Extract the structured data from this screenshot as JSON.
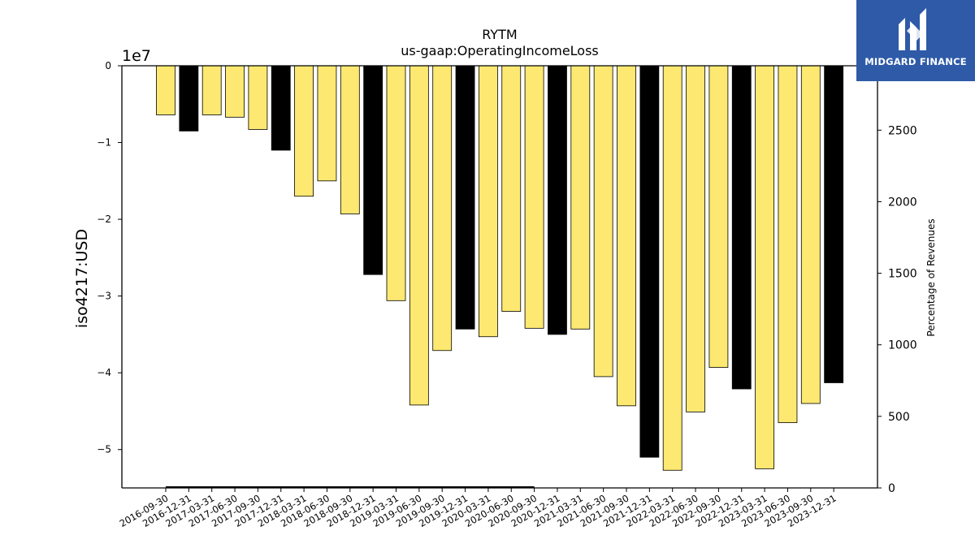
{
  "chart_data": {
    "type": "bar",
    "title": "RYTM",
    "subtitle": "us-gaap:OperatingIncomeLoss",
    "ylabel": "iso4217:USD",
    "y_offset_label": "1e7",
    "y2label": "Percentage of Revenues",
    "ylim": [
      -55000000,
      0
    ],
    "y2lim": [
      0,
      2950
    ],
    "y_ticks": [
      0,
      -1,
      -2,
      -3,
      -4,
      -5
    ],
    "y_tick_labels": [
      "0",
      "−1",
      "−2",
      "−3",
      "−4",
      "−5"
    ],
    "y2_ticks": [
      0,
      500,
      1000,
      1500,
      2000,
      2500
    ],
    "y2_tick_labels": [
      "0",
      "500",
      "1000",
      "1500",
      "2000",
      "2500"
    ],
    "categories": [
      "2016-09-30",
      "2016-12-31",
      "2017-03-31",
      "2017-06-30",
      "2017-09-30",
      "2017-12-31",
      "2018-03-31",
      "2018-06-30",
      "2018-09-30",
      "2018-12-31",
      "2019-03-31",
      "2019-06-30",
      "2019-09-30",
      "2019-12-31",
      "2020-03-31",
      "2020-06-30",
      "2020-09-30",
      "2020-12-31",
      "2021-03-31",
      "2021-06-30",
      "2021-09-30",
      "2021-12-31",
      "2022-03-31",
      "2022-06-30",
      "2022-09-30",
      "2022-12-31",
      "2023-03-31",
      "2023-06-30",
      "2023-09-30",
      "2023-12-31"
    ],
    "values": [
      -6400000,
      -8500000,
      -6400000,
      -6700000,
      -8300000,
      -11000000,
      -17000000,
      -15000000,
      -19300000,
      -27200000,
      -30600000,
      -44200000,
      -37100000,
      -34300000,
      -35300000,
      -32000000,
      -34200000,
      -35000000,
      -34300000,
      -40500000,
      -44300000,
      -51000000,
      -52700000,
      -45100000,
      -39300000,
      -42100000,
      -52500000,
      -46500000,
      -44000000,
      -41300000
    ],
    "highlight": [
      false,
      true,
      false,
      false,
      false,
      true,
      false,
      false,
      false,
      true,
      false,
      false,
      false,
      true,
      false,
      false,
      false,
      true,
      false,
      false,
      false,
      true,
      false,
      false,
      false,
      true,
      false,
      false,
      false,
      true
    ],
    "secondary_line": {
      "x_start": "2016-09-30",
      "x_end": "2020-09-30",
      "value": 0
    },
    "colors": {
      "quarter": "#fde971",
      "annual": "#000000",
      "edge": "#000000"
    }
  },
  "logo": {
    "text": "MIDGARD FINANCE",
    "background": "#2f5aa8"
  }
}
